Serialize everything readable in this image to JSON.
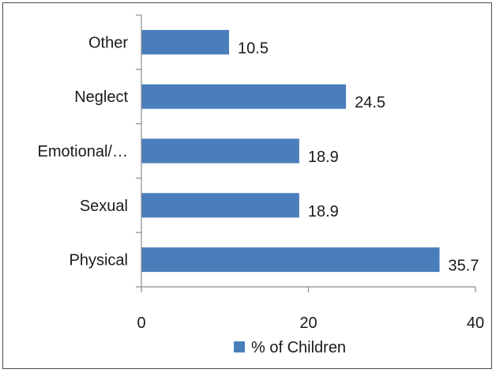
{
  "chart_data": {
    "type": "bar",
    "orientation": "horizontal",
    "categories": [
      "Physical",
      "Sexual",
      "Emotional/…",
      "Neglect",
      "Other"
    ],
    "series": [
      {
        "name": "% of Children",
        "values": [
          35.7,
          18.9,
          18.9,
          24.5,
          10.5
        ],
        "color": "#4a7ebb"
      }
    ],
    "data_labels": [
      "35.7",
      "18.9",
      "18.9",
      "24.5",
      "10.5"
    ],
    "xlim": [
      0,
      40
    ],
    "x_ticks": [
      0,
      20,
      40
    ],
    "x_tick_labels": [
      "0",
      "20",
      "40"
    ],
    "grid": false,
    "legend": {
      "position": "bottom",
      "label": "% of Children"
    }
  }
}
